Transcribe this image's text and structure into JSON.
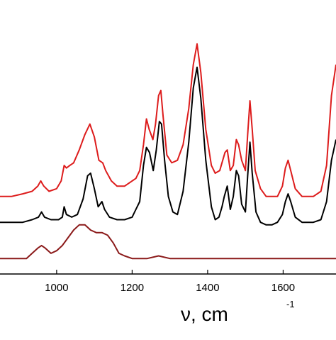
{
  "chart_data": {
    "type": "line",
    "title": "",
    "xlabel": "ν, cm",
    "xlabel_superscript": "-1",
    "ylabel": "",
    "xlim": [
      850,
      1740
    ],
    "ylim": [
      -0.06,
      1.0
    ],
    "y_ticks_shown": false,
    "grid": false,
    "legend": "none",
    "x_ticks": [
      {
        "value": 1000,
        "label": "1000"
      },
      {
        "value": 1200,
        "label": "1200"
      },
      {
        "value": 1400,
        "label": "1400"
      },
      {
        "value": 1600,
        "label": "1600"
      }
    ],
    "series": [
      {
        "color": "#dd1c1c",
        "points": [
          [
            850,
            0.24
          ],
          [
            880,
            0.24
          ],
          [
            910,
            0.25
          ],
          [
            935,
            0.26
          ],
          [
            950,
            0.28
          ],
          [
            958,
            0.3
          ],
          [
            966,
            0.28
          ],
          [
            980,
            0.26
          ],
          [
            1000,
            0.27
          ],
          [
            1012,
            0.3
          ],
          [
            1020,
            0.36
          ],
          [
            1026,
            0.35
          ],
          [
            1035,
            0.36
          ],
          [
            1045,
            0.37
          ],
          [
            1060,
            0.42
          ],
          [
            1075,
            0.48
          ],
          [
            1088,
            0.52
          ],
          [
            1100,
            0.47
          ],
          [
            1112,
            0.38
          ],
          [
            1122,
            0.37
          ],
          [
            1130,
            0.34
          ],
          [
            1145,
            0.3
          ],
          [
            1160,
            0.28
          ],
          [
            1180,
            0.28
          ],
          [
            1200,
            0.3
          ],
          [
            1210,
            0.31
          ],
          [
            1220,
            0.34
          ],
          [
            1230,
            0.44
          ],
          [
            1238,
            0.54
          ],
          [
            1245,
            0.5
          ],
          [
            1255,
            0.46
          ],
          [
            1262,
            0.52
          ],
          [
            1270,
            0.63
          ],
          [
            1276,
            0.65
          ],
          [
            1282,
            0.55
          ],
          [
            1292,
            0.4
          ],
          [
            1305,
            0.37
          ],
          [
            1320,
            0.38
          ],
          [
            1335,
            0.44
          ],
          [
            1350,
            0.58
          ],
          [
            1362,
            0.75
          ],
          [
            1372,
            0.83
          ],
          [
            1382,
            0.72
          ],
          [
            1395,
            0.5
          ],
          [
            1410,
            0.36
          ],
          [
            1420,
            0.33
          ],
          [
            1432,
            0.34
          ],
          [
            1440,
            0.38
          ],
          [
            1446,
            0.41
          ],
          [
            1452,
            0.42
          ],
          [
            1460,
            0.34
          ],
          [
            1468,
            0.36
          ],
          [
            1476,
            0.46
          ],
          [
            1482,
            0.44
          ],
          [
            1490,
            0.38
          ],
          [
            1500,
            0.34
          ],
          [
            1506,
            0.48
          ],
          [
            1512,
            0.61
          ],
          [
            1518,
            0.5
          ],
          [
            1526,
            0.34
          ],
          [
            1540,
            0.27
          ],
          [
            1555,
            0.24
          ],
          [
            1570,
            0.24
          ],
          [
            1585,
            0.24
          ],
          [
            1598,
            0.28
          ],
          [
            1606,
            0.35
          ],
          [
            1613,
            0.38
          ],
          [
            1620,
            0.34
          ],
          [
            1632,
            0.27
          ],
          [
            1650,
            0.24
          ],
          [
            1680,
            0.24
          ],
          [
            1700,
            0.26
          ],
          [
            1715,
            0.36
          ],
          [
            1728,
            0.63
          ],
          [
            1740,
            0.75
          ]
        ]
      },
      {
        "color": "#000000",
        "points": [
          [
            850,
            0.14
          ],
          [
            880,
            0.14
          ],
          [
            910,
            0.14
          ],
          [
            935,
            0.15
          ],
          [
            952,
            0.16
          ],
          [
            960,
            0.18
          ],
          [
            968,
            0.16
          ],
          [
            985,
            0.15
          ],
          [
            1005,
            0.15
          ],
          [
            1015,
            0.16
          ],
          [
            1020,
            0.2
          ],
          [
            1026,
            0.17
          ],
          [
            1040,
            0.16
          ],
          [
            1055,
            0.17
          ],
          [
            1070,
            0.23
          ],
          [
            1082,
            0.32
          ],
          [
            1090,
            0.33
          ],
          [
            1100,
            0.27
          ],
          [
            1110,
            0.2
          ],
          [
            1120,
            0.22
          ],
          [
            1127,
            0.19
          ],
          [
            1140,
            0.16
          ],
          [
            1160,
            0.15
          ],
          [
            1180,
            0.15
          ],
          [
            1200,
            0.16
          ],
          [
            1210,
            0.19
          ],
          [
            1220,
            0.22
          ],
          [
            1230,
            0.36
          ],
          [
            1238,
            0.43
          ],
          [
            1246,
            0.41
          ],
          [
            1256,
            0.34
          ],
          [
            1264,
            0.42
          ],
          [
            1272,
            0.53
          ],
          [
            1278,
            0.52
          ],
          [
            1286,
            0.38
          ],
          [
            1296,
            0.24
          ],
          [
            1308,
            0.18
          ],
          [
            1320,
            0.17
          ],
          [
            1335,
            0.26
          ],
          [
            1350,
            0.45
          ],
          [
            1362,
            0.66
          ],
          [
            1372,
            0.74
          ],
          [
            1382,
            0.62
          ],
          [
            1395,
            0.38
          ],
          [
            1410,
            0.2
          ],
          [
            1420,
            0.15
          ],
          [
            1430,
            0.16
          ],
          [
            1438,
            0.2
          ],
          [
            1444,
            0.24
          ],
          [
            1452,
            0.28
          ],
          [
            1460,
            0.19
          ],
          [
            1468,
            0.24
          ],
          [
            1476,
            0.34
          ],
          [
            1482,
            0.32
          ],
          [
            1490,
            0.21
          ],
          [
            1500,
            0.18
          ],
          [
            1506,
            0.32
          ],
          [
            1512,
            0.45
          ],
          [
            1518,
            0.33
          ],
          [
            1528,
            0.18
          ],
          [
            1540,
            0.14
          ],
          [
            1555,
            0.13
          ],
          [
            1570,
            0.13
          ],
          [
            1585,
            0.14
          ],
          [
            1598,
            0.17
          ],
          [
            1606,
            0.22
          ],
          [
            1613,
            0.25
          ],
          [
            1620,
            0.22
          ],
          [
            1632,
            0.16
          ],
          [
            1650,
            0.14
          ],
          [
            1680,
            0.14
          ],
          [
            1700,
            0.15
          ],
          [
            1715,
            0.22
          ],
          [
            1728,
            0.38
          ],
          [
            1740,
            0.46
          ]
        ]
      },
      {
        "color": "#8b1a1a",
        "points": [
          [
            850,
            0.0
          ],
          [
            900,
            0.0
          ],
          [
            920,
            0.0
          ],
          [
            935,
            0.02
          ],
          [
            950,
            0.04
          ],
          [
            960,
            0.05
          ],
          [
            970,
            0.04
          ],
          [
            985,
            0.02
          ],
          [
            1000,
            0.03
          ],
          [
            1015,
            0.05
          ],
          [
            1030,
            0.08
          ],
          [
            1045,
            0.11
          ],
          [
            1060,
            0.13
          ],
          [
            1075,
            0.13
          ],
          [
            1090,
            0.11
          ],
          [
            1105,
            0.1
          ],
          [
            1120,
            0.1
          ],
          [
            1135,
            0.09
          ],
          [
            1150,
            0.06
          ],
          [
            1165,
            0.02
          ],
          [
            1180,
            0.01
          ],
          [
            1200,
            0.0
          ],
          [
            1240,
            0.0
          ],
          [
            1270,
            0.01
          ],
          [
            1300,
            0.0
          ],
          [
            1400,
            0.0
          ],
          [
            1500,
            0.0
          ],
          [
            1600,
            0.0
          ],
          [
            1700,
            0.0
          ],
          [
            1740,
            0.0
          ]
        ]
      }
    ]
  }
}
